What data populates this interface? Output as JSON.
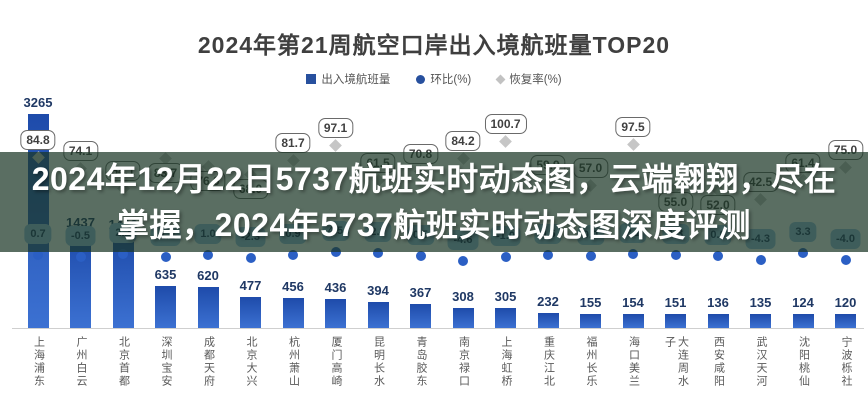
{
  "title": "2024年第21周航空口岸出入境航班量TOP20",
  "legend": {
    "items": [
      {
        "label": "出入境航班量",
        "marker": "square-icon",
        "color": "#27509e"
      },
      {
        "label": "环比(%)",
        "marker": "circle-icon",
        "color": "#27509e"
      },
      {
        "label": "恢复率(%)",
        "marker": "diamond-icon",
        "color": "#c2c2c2"
      }
    ]
  },
  "overlay": {
    "line1": "2024年12月22日5737航班实时动态图，云端翱翔，尽在",
    "line2": "掌握，2024年5737航班实时动态图深度评测"
  },
  "colors": {
    "bar_top": "#1e4baa",
    "bar_bottom": "#3c71d2",
    "value_text": "#1f3864",
    "badge_fill": "#9cc3e6",
    "diamond": "#c6c6c6",
    "overlay_tint": "rgba(26,54,37,0.72)"
  },
  "chart_data": {
    "type": "bar",
    "title": "2024年第21周航空口岸出入境航班量TOP20",
    "legend_position": "top",
    "grid": false,
    "value_labels": true,
    "categories": [
      "上海浦东",
      "广州白云",
      "北京首都",
      "深圳宝安",
      "成都天府",
      "北京大兴",
      "杭州萧山",
      "厦门高崎",
      "昆明长水",
      "青岛胶东",
      "南京禄口",
      "上海虹桥",
      "重庆江北",
      "福州长乐",
      "海口美兰",
      "大连周水子",
      "西安咸阳",
      "武汉天河",
      "沈阳桃仙",
      "宁波栎社"
    ],
    "series": [
      {
        "name": "出入境航班量",
        "values": [
          3265,
          1437,
          1406,
          635,
          620,
          477,
          456,
          436,
          394,
          367,
          308,
          305,
          232,
          155,
          154,
          151,
          136,
          135,
          124,
          120
        ]
      },
      {
        "name": "环比(%)",
        "values": [
          0.7,
          -0.5,
          2.2,
          -1.2,
          1.0,
          -2.3,
          0.9,
          4.5,
          2.9,
          0.5,
          -4.6,
          -1.0,
          0.6,
          0.0,
          2.1,
          1.3,
          0.0,
          -4.3,
          3.3,
          -4.0
        ]
      },
      {
        "name": "恢复率(%)",
        "values": [
          84.8,
          74.1,
          54.1,
          83.7,
          76.0,
          68.0,
          81.7,
          97.1,
          61.5,
          70.8,
          84.2,
          100.7,
          59.9,
          57.0,
          97.5,
          55.0,
          52.0,
          42.5,
          61.4,
          75.0
        ]
      }
    ],
    "recovery_label_below_indices": [
      3,
      4,
      5,
      15,
      16
    ]
  }
}
